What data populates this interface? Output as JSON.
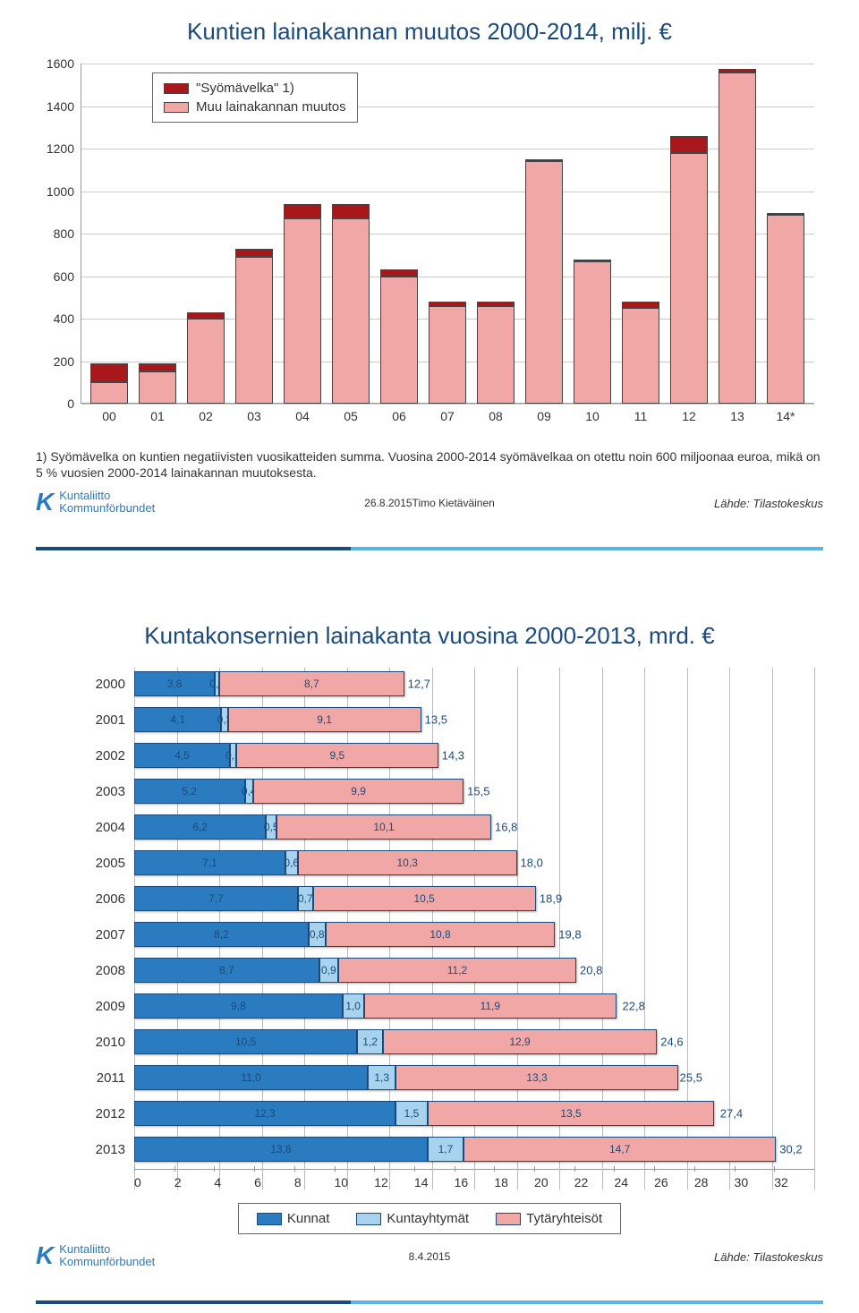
{
  "chart1": {
    "type": "stacked_bar",
    "title": "Kuntien lainakannan muutos 2000-2014, milj. €",
    "ylim": [
      0,
      1600
    ],
    "ytick_step": 200,
    "yticks": [
      0,
      200,
      400,
      600,
      800,
      1000,
      1200,
      1400,
      1600
    ],
    "categories": [
      "00",
      "01",
      "02",
      "03",
      "04",
      "05",
      "06",
      "07",
      "08",
      "09",
      "10",
      "11",
      "12",
      "13",
      "14*"
    ],
    "series": [
      {
        "name": "Muu lainakannan muutos",
        "color": "#f2a7a7",
        "values": [
          100,
          150,
          400,
          690,
          870,
          870,
          600,
          460,
          460,
          1140,
          670,
          450,
          1180,
          1560,
          890
        ]
      },
      {
        "name": "\"Syömävelka\" 1)",
        "color": "#a8181a",
        "values": [
          90,
          40,
          30,
          40,
          70,
          70,
          30,
          20,
          20,
          10,
          0,
          30,
          80,
          15,
          0
        ]
      }
    ],
    "legend_items": [
      "\"Syömävelka\" 1)",
      "Muu lainakannan muutos"
    ],
    "legend_colors": [
      "#a8181a",
      "#f2a7a7"
    ],
    "footnote": "1) Syömävelka on kuntien negatiivisten vuosikatteiden summa. Vuosina 2000-2014 syömävelkaa on otettu  noin 600 miljoonaa euroa, mikä on 5 % vuosien 2000-2014 lainakannan muutoksesta.",
    "footer_center": "26.8.2015Timo Kietäväinen",
    "footer_right": "Lähde: Tilastokeskus",
    "grid_color": "#cccccc",
    "border_color": "#444444",
    "background_color": "#ffffff"
  },
  "chart2": {
    "type": "horizontal_stacked_bar",
    "title": "Kuntakonsernien lainakanta vuosina 2000-2013, mrd. €",
    "xlim": [
      0,
      32
    ],
    "xtick_step": 2,
    "xticks": [
      0,
      2,
      4,
      6,
      8,
      10,
      12,
      14,
      16,
      18,
      20,
      22,
      24,
      26,
      28,
      30,
      32
    ],
    "years": [
      "2000",
      "2001",
      "2002",
      "2003",
      "2004",
      "2005",
      "2006",
      "2007",
      "2008",
      "2009",
      "2010",
      "2011",
      "2012",
      "2013"
    ],
    "series_names": [
      "Kunnat",
      "Kuntayhtymät",
      "Tytäryhteisöt"
    ],
    "series_colors": [
      "#2a7bbf",
      "#a8d3ef",
      "#f2a7a7"
    ],
    "rows": [
      {
        "kunnat": 3.8,
        "kuntayhtymat": 0.2,
        "tytar": 8.7,
        "total": 12.7,
        "labels": [
          "3,8",
          "0,2",
          "8,7"
        ],
        "total_label": "12,7"
      },
      {
        "kunnat": 4.1,
        "kuntayhtymat": 0.3,
        "tytar": 9.1,
        "total": 13.5,
        "labels": [
          "4,1",
          "0,3",
          "9,1"
        ],
        "total_label": "13,5"
      },
      {
        "kunnat": 4.5,
        "kuntayhtymat": 0.3,
        "tytar": 9.5,
        "total": 14.3,
        "labels": [
          "4,5",
          "0,3",
          "9,5"
        ],
        "total_label": "14,3"
      },
      {
        "kunnat": 5.2,
        "kuntayhtymat": 0.4,
        "tytar": 9.9,
        "total": 15.5,
        "labels": [
          "5,2",
          "0,4",
          "9,9"
        ],
        "total_label": "15,5"
      },
      {
        "kunnat": 6.2,
        "kuntayhtymat": 0.5,
        "tytar": 10.1,
        "total": 16.8,
        "labels": [
          "6,2",
          "0,5",
          "10,1"
        ],
        "total_label": "16,8"
      },
      {
        "kunnat": 7.1,
        "kuntayhtymat": 0.6,
        "tytar": 10.3,
        "total": 18.0,
        "labels": [
          "7,1",
          "0,6",
          "10,3"
        ],
        "total_label": "18,0"
      },
      {
        "kunnat": 7.7,
        "kuntayhtymat": 0.7,
        "tytar": 10.5,
        "total": 18.9,
        "labels": [
          "7,7",
          "0,7",
          "10,5"
        ],
        "total_label": "18,9"
      },
      {
        "kunnat": 8.2,
        "kuntayhtymat": 0.8,
        "tytar": 10.8,
        "total": 19.8,
        "labels": [
          "8,2",
          "0,8",
          "10,8"
        ],
        "total_label": "19,8"
      },
      {
        "kunnat": 8.7,
        "kuntayhtymat": 0.9,
        "tytar": 11.2,
        "total": 20.8,
        "labels": [
          "8,7",
          "0,9",
          "11,2"
        ],
        "total_label": "20,8"
      },
      {
        "kunnat": 9.8,
        "kuntayhtymat": 1.0,
        "tytar": 11.9,
        "total": 22.8,
        "labels": [
          "9,8",
          "1,0",
          "11,9"
        ],
        "total_label": "22,8"
      },
      {
        "kunnat": 10.5,
        "kuntayhtymat": 1.2,
        "tytar": 12.9,
        "total": 24.6,
        "labels": [
          "10,5",
          "1,2",
          "12,9"
        ],
        "total_label": "24,6"
      },
      {
        "kunnat": 11.0,
        "kuntayhtymat": 1.3,
        "tytar": 13.3,
        "total": 25.5,
        "labels": [
          "11,0",
          "1,3",
          "13,3"
        ],
        "total_label": "25,5"
      },
      {
        "kunnat": 12.3,
        "kuntayhtymat": 1.5,
        "tytar": 13.5,
        "total": 27.4,
        "labels": [
          "12,3",
          "1,5",
          "13,5"
        ],
        "total_label": "27,4"
      },
      {
        "kunnat": 13.8,
        "kuntayhtymat": 1.7,
        "tytar": 14.7,
        "total": 30.2,
        "labels": [
          "13,8",
          "1,7",
          "14,7"
        ],
        "total_label": "30,2"
      }
    ],
    "footer_center": "8.4.2015",
    "footer_right": "Lähde: Tilastokeskus",
    "grid_color": "#bbbbbb"
  },
  "logo": {
    "line1": "Kuntaliitto",
    "line2": "Kommunförbundet"
  }
}
